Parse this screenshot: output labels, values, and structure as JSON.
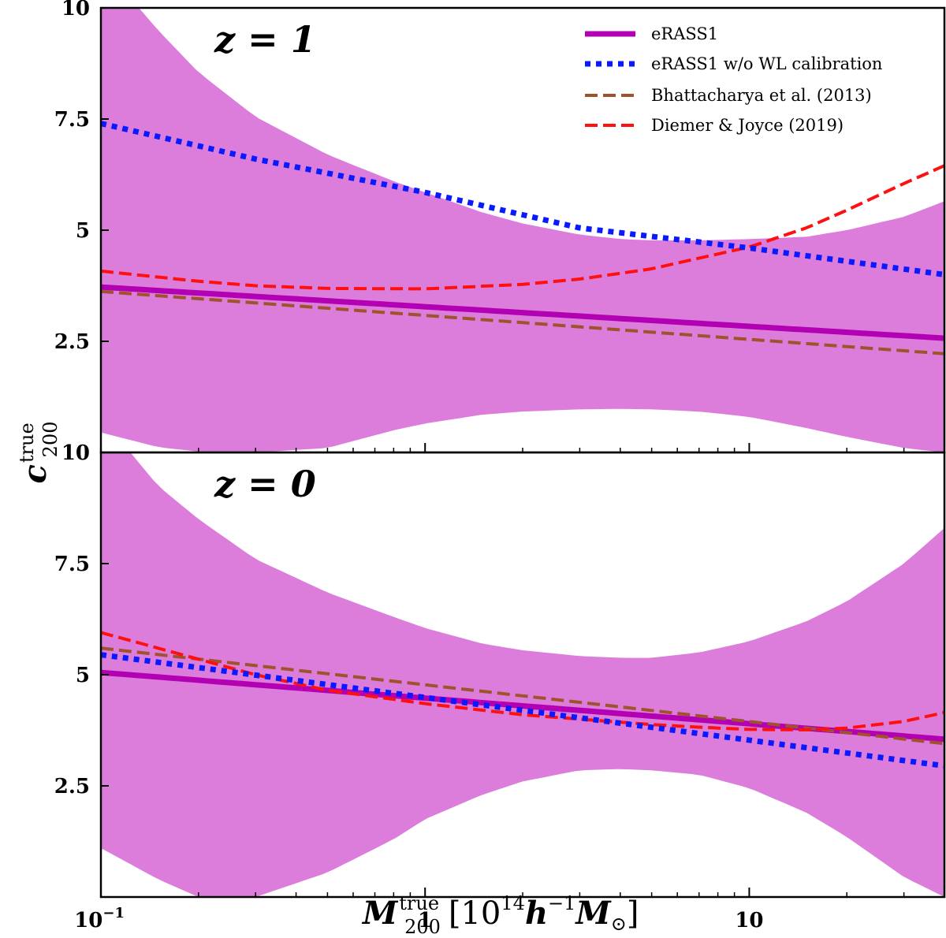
{
  "chart_data": {
    "type": "line",
    "x_scale": "log",
    "xlim": [
      0.1,
      40
    ],
    "x_ticks": [
      {
        "value": 0.1,
        "base": "10",
        "exp": "−1"
      },
      {
        "value": 1,
        "label": "1"
      },
      {
        "value": 10,
        "label": "10"
      }
    ],
    "xlabel": {
      "main": "M",
      "sup": "true",
      "sub": "200",
      "unit_open": "[10",
      "unit_exp": "14",
      "unit_h": "h",
      "unit_hexp": "−1",
      "unit_M": "M",
      "unit_sun": "⊙",
      "unit_close": "]"
    },
    "ylabel": {
      "main": "c",
      "sup": "true",
      "sub": "200"
    },
    "legend": {
      "placement": "top-right",
      "entries": [
        {
          "label": "eRASS1",
          "style": "band+solid",
          "color": "#b300b3"
        },
        {
          "label": "eRASS1 w/o WL calibration",
          "style": "dotted",
          "color": "#0a1aff"
        },
        {
          "label": "Bhattacharya et al. (2013)",
          "style": "dashed",
          "color": "#a0522d"
        },
        {
          "label": "Diemer & Joyce (2019)",
          "style": "dashed",
          "color": "#ff1010"
        }
      ]
    },
    "colors": {
      "band": "#dc7ddc",
      "erass1": "#b300b3",
      "nowl": "#0a1aff",
      "bhatt": "#a0522d",
      "diemer": "#ff1010"
    },
    "panels": [
      {
        "label": "z = 1",
        "ylim": [
          0,
          10
        ],
        "y_ticks": [
          "2.5",
          "5",
          "7.5",
          "10"
        ],
        "band": {
          "x": [
            0.1,
            0.15,
            0.2,
            0.3,
            0.5,
            0.8,
            1,
            1.5,
            2,
            3,
            4,
            5,
            7,
            10,
            15,
            20,
            30,
            40
          ],
          "upper": [
            11.0,
            9.5,
            8.55,
            7.55,
            6.7,
            6.1,
            5.85,
            5.4,
            5.15,
            4.9,
            4.8,
            4.77,
            4.77,
            4.8,
            4.85,
            5.0,
            5.3,
            5.65
          ],
          "lower": [
            0.45,
            0.12,
            0.02,
            0.0,
            0.1,
            0.5,
            0.65,
            0.85,
            0.92,
            0.97,
            0.98,
            0.97,
            0.92,
            0.8,
            0.55,
            0.35,
            0.1,
            0.0
          ]
        },
        "series": [
          {
            "name": "eRASS1",
            "x": [
              0.1,
              40
            ],
            "y": [
              3.72,
              2.57
            ]
          },
          {
            "name": "eRASS1 w/o WL calibration",
            "x": [
              0.1,
              0.3,
              1,
              3,
              10,
              40
            ],
            "y": [
              7.4,
              6.6,
              5.85,
              5.05,
              4.6,
              4.0
            ]
          },
          {
            "name": "Bhattacharya et al. (2013)",
            "x": [
              0.1,
              40
            ],
            "y": [
              3.62,
              2.22
            ]
          },
          {
            "name": "Diemer & Joyce (2019)",
            "x": [
              0.1,
              0.2,
              0.3,
              0.5,
              1,
              2,
              3,
              5,
              7,
              10,
              15,
              20,
              30,
              40
            ],
            "y": [
              4.08,
              3.85,
              3.75,
              3.69,
              3.68,
              3.78,
              3.9,
              4.13,
              4.37,
              4.62,
              5.05,
              5.45,
              6.05,
              6.45
            ]
          }
        ]
      },
      {
        "label": "z = 0",
        "ylim": [
          0,
          10
        ],
        "y_ticks": [
          "2.5",
          "5",
          "7.5",
          "10"
        ],
        "band": {
          "x": [
            0.1,
            0.15,
            0.2,
            0.3,
            0.5,
            0.8,
            1,
            1.5,
            2,
            3,
            4,
            5,
            7,
            10,
            15,
            20,
            30,
            40
          ],
          "upper": [
            10.8,
            9.25,
            8.5,
            7.6,
            6.85,
            6.3,
            6.05,
            5.7,
            5.55,
            5.42,
            5.38,
            5.38,
            5.5,
            5.75,
            6.2,
            6.65,
            7.5,
            8.3
          ],
          "lower": [
            1.1,
            0.4,
            0.0,
            0.0,
            0.55,
            1.3,
            1.75,
            2.3,
            2.6,
            2.85,
            2.88,
            2.85,
            2.75,
            2.45,
            1.9,
            1.35,
            0.45,
            0.0
          ]
        },
        "series": [
          {
            "name": "eRASS1",
            "x": [
              0.1,
              40
            ],
            "y": [
              5.05,
              3.55
            ]
          },
          {
            "name": "eRASS1 w/o WL calibration",
            "x": [
              0.1,
              40
            ],
            "y": [
              5.45,
              2.95
            ]
          },
          {
            "name": "Bhattacharya et al. (2013)",
            "x": [
              0.1,
              40
            ],
            "y": [
              5.6,
              3.45
            ]
          },
          {
            "name": "Diemer & Joyce (2019)",
            "x": [
              0.1,
              0.2,
              0.3,
              0.5,
              1,
              2,
              3,
              5,
              7,
              10,
              15,
              20,
              30,
              40
            ],
            "y": [
              5.95,
              5.35,
              5.0,
              4.65,
              4.35,
              4.1,
              4.0,
              3.88,
              3.82,
              3.77,
              3.76,
              3.8,
              3.95,
              4.15
            ]
          }
        ]
      }
    ]
  }
}
